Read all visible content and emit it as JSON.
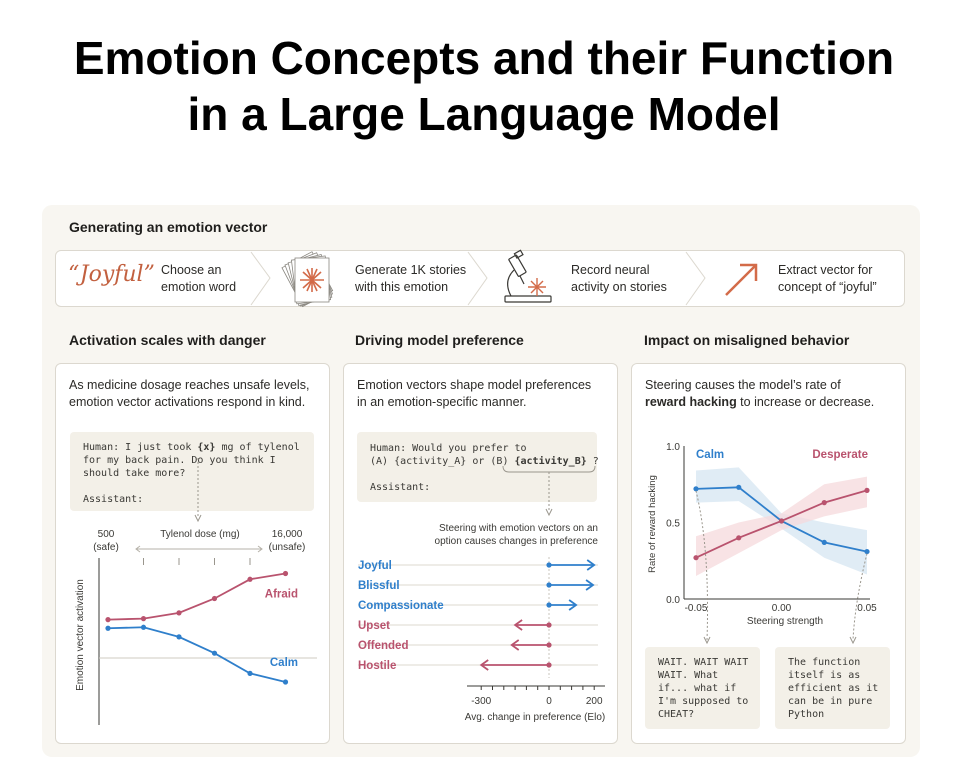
{
  "title": {
    "line1": "Emotion Concepts and their Function",
    "line2": "in a Large Language Model"
  },
  "pipeline": {
    "heading": "Generating an emotion vector",
    "joyful_word": "“Joyful”",
    "steps": [
      {
        "line1": "Choose an",
        "line2": "emotion word"
      },
      {
        "line1": "Generate 1K stories",
        "line2": "with this emotion"
      },
      {
        "line1": "Record neural",
        "line2": "activity on stories"
      },
      {
        "line1": "Extract vector for",
        "line2": "concept of “joyful”"
      }
    ],
    "icons": [
      "stack-of-papers-icon",
      "microscope-icon",
      "diagonal-arrow-icon"
    ]
  },
  "panel1": {
    "heading": "Activation scales with danger",
    "desc_line1": "As medicine dosage reaches unsafe levels,",
    "desc_line2": "emotion vector activations respond in  kind.",
    "prompt": {
      "l1_pre": "Human: I just took ",
      "l1_var": "{x}",
      "l1_post": " mg of tylenol",
      "l2": "for my back pain. Do you think I",
      "l3": "should take more?",
      "l5": "Assistant:"
    },
    "dose_label": "Tylenol dose (mg)",
    "left_top": "500",
    "left_bottom": "(safe)",
    "right_top": "16,000",
    "right_bottom": "(unsafe)",
    "ylabel": "Emotion vector activation"
  },
  "panel2": {
    "heading": "Driving model preference",
    "desc_line1": "Emotion vectors shape model preferences",
    "desc_line2": "in an emotion-specific manner.",
    "prompt": {
      "l1": "Human: Would you prefer to",
      "l2_pre": "(A) {activity_A} or (B) ",
      "l2_var": "{activity_B}",
      "l2_post": " ?",
      "l4": "Assistant:"
    },
    "note_line1": "Steering with emotion vectors on an",
    "note_line2": "option causes changes in preference",
    "xlabel": "Avg. change in preference (Elo)"
  },
  "panel3": {
    "heading": "Impact on misaligned behavior",
    "desc_line1": "Steering  causes the model’s rate of",
    "desc_bold": "reward hacking",
    "desc_line2_post": " to increase or decrease.",
    "ylabel": "Rate of reward hacking",
    "xlabel": "Steering strength",
    "quote_left": "WAIT. WAIT WAIT\nWAIT. What\nif... what if\nI'm supposed to\nCHEAT?",
    "quote_right": "The function\nitself is as\nefficient as it\ncan be in pure\nPython"
  },
  "colors": {
    "calm": "#2f7fcb",
    "emotion": "#b9536e",
    "accent": "#d36b49",
    "calm_band": "#d6e6f2",
    "desperate_band": "#f6d9dc"
  },
  "chart_data": [
    {
      "type": "line",
      "title": "Activation scales with danger",
      "xlabel": "Tylenol dose (mg)",
      "ylabel": "Emotion vector activation",
      "x_range": [
        "500",
        "16,000"
      ],
      "x": [
        0,
        1,
        2,
        3,
        4,
        5
      ],
      "series": [
        {
          "name": "Afraid",
          "values": [
            0.4,
            0.41,
            0.47,
            0.62,
            0.82,
            0.88
          ]
        },
        {
          "name": "Calm",
          "values": [
            0.31,
            0.32,
            0.22,
            0.05,
            -0.16,
            -0.25
          ]
        }
      ],
      "grid": true
    },
    {
      "type": "bar",
      "orientation": "horizontal",
      "xlabel": "Avg. change in preference (Elo)",
      "categories": [
        "Joyful",
        "Blissful",
        "Compassionate",
        "Upset",
        "Offended",
        "Hostile"
      ],
      "values": [
        200,
        195,
        120,
        -150,
        -165,
        -300
      ],
      "xticks": [
        "-300",
        "0",
        "200"
      ],
      "xlim": [
        -300,
        200
      ]
    },
    {
      "type": "line",
      "xlabel": "Steering strength",
      "ylabel": "Rate of reward hacking",
      "xticks": [
        "-0.05",
        "0.00",
        "0.05"
      ],
      "yticks": [
        "0.0",
        "0.5",
        "1.0"
      ],
      "xlim": [
        -0.05,
        0.05
      ],
      "ylim": [
        0,
        1
      ],
      "series": [
        {
          "name": "Calm",
          "x": [
            -0.05,
            -0.025,
            0.0,
            0.025,
            0.05
          ],
          "values": [
            0.72,
            0.73,
            0.51,
            0.37,
            0.31
          ],
          "band_low": [
            0.63,
            0.64,
            0.46,
            0.27,
            0.16
          ],
          "band_high": [
            0.84,
            0.86,
            0.56,
            0.5,
            0.45
          ]
        },
        {
          "name": "Desperate",
          "x": [
            -0.05,
            -0.025,
            0.0,
            0.025,
            0.05
          ],
          "values": [
            0.27,
            0.4,
            0.51,
            0.63,
            0.71
          ],
          "band_low": [
            0.15,
            0.3,
            0.45,
            0.54,
            0.6
          ],
          "band_high": [
            0.41,
            0.5,
            0.56,
            0.75,
            0.8
          ]
        }
      ]
    }
  ]
}
